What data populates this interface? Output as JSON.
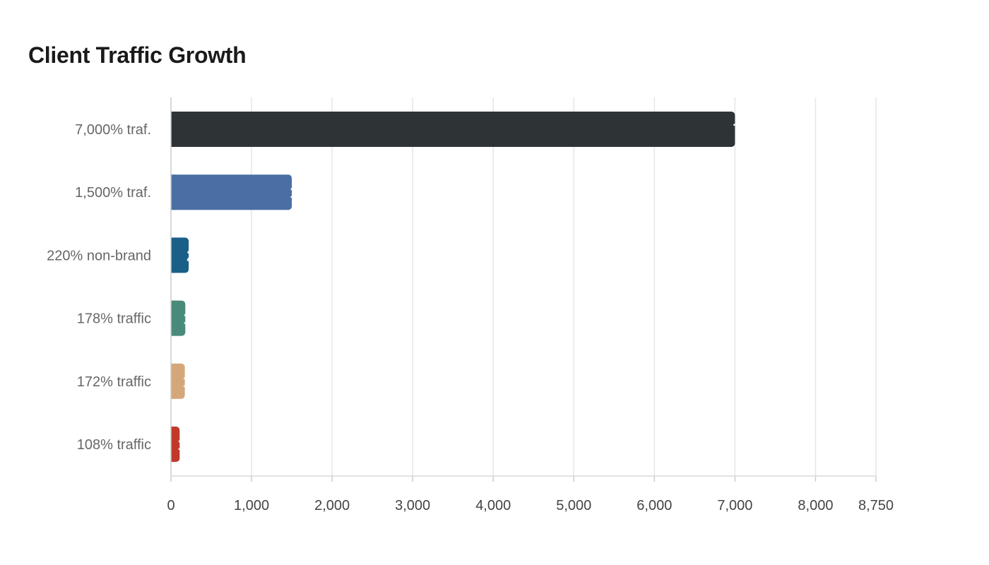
{
  "chart_data": {
    "type": "bar",
    "orientation": "horizontal",
    "title": "Client Traffic Growth",
    "xlabel": "",
    "ylabel": "",
    "categories": [
      "7,000% traf.",
      "1,500% traf.",
      "220% non-brand",
      "178% traffic",
      "172% traffic",
      "108% traffic"
    ],
    "values": [
      7000,
      1500,
      220,
      178,
      172,
      108
    ],
    "colors": [
      "#2e3436",
      "#4a6fa5",
      "#1a5f88",
      "#4a8a7a",
      "#d4a77a",
      "#c0392b"
    ],
    "xlim": [
      0,
      8750
    ],
    "xticks": [
      0,
      1000,
      2000,
      3000,
      4000,
      5000,
      6000,
      7000,
      8000,
      8750
    ],
    "xtick_labels": [
      "0",
      "1,000",
      "2,000",
      "3,000",
      "4,000",
      "5,000",
      "6,000",
      "7,000",
      "8,000",
      "8,750"
    ],
    "grid": "vertical",
    "legend": "none",
    "value_labels_inside_bar_end": true
  }
}
